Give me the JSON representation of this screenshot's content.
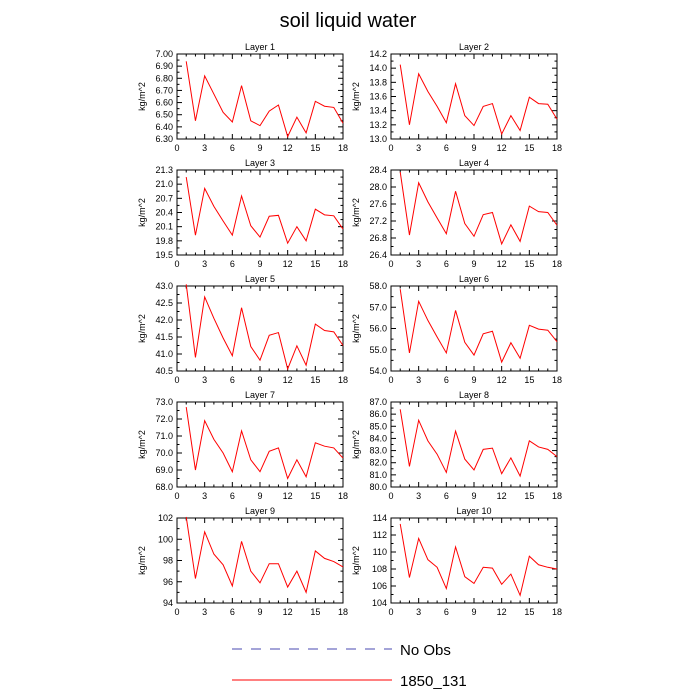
{
  "figure": {
    "title": "soil liquid water"
  },
  "legend": {
    "items": [
      {
        "label": "No Obs",
        "color": "#4a4ab0",
        "dash": "dashed"
      },
      {
        "label": "1850_131",
        "color": "#ff0000",
        "dash": "solid"
      }
    ]
  },
  "chart_data": [
    {
      "type": "line",
      "title": "Layer 1",
      "ylabel": "kg/m^2",
      "x": [
        1,
        2,
        3,
        4,
        5,
        6,
        7,
        8,
        9,
        10,
        11,
        12,
        13,
        14,
        15,
        16,
        17,
        18
      ],
      "xlim": [
        0,
        18
      ],
      "xticks": [
        0,
        3,
        6,
        9,
        12,
        15,
        18
      ],
      "ylim": [
        6.3,
        7.0
      ],
      "yticks": [
        "6.30",
        "6.40",
        "6.50",
        "6.60",
        "6.70",
        "6.80",
        "6.90",
        "7.00"
      ],
      "series": [
        {
          "name": "1850_131",
          "values": [
            6.94,
            6.45,
            6.82,
            6.67,
            6.52,
            6.44,
            6.74,
            6.45,
            6.41,
            6.53,
            6.58,
            6.32,
            6.48,
            6.35,
            6.61,
            6.57,
            6.56,
            6.43
          ]
        }
      ]
    },
    {
      "type": "line",
      "title": "Layer 2",
      "ylabel": "kg/m^2",
      "x": [
        1,
        2,
        3,
        4,
        5,
        6,
        7,
        8,
        9,
        10,
        11,
        12,
        13,
        14,
        15,
        16,
        17,
        18
      ],
      "xlim": [
        0,
        18
      ],
      "xticks": [
        0,
        3,
        6,
        9,
        12,
        15,
        18
      ],
      "ylim": [
        13.0,
        14.2
      ],
      "yticks": [
        "13.0",
        "13.2",
        "13.4",
        "13.6",
        "13.8",
        "14.0",
        "14.2"
      ],
      "series": [
        {
          "name": "1850_131",
          "values": [
            14.05,
            13.2,
            13.92,
            13.67,
            13.46,
            13.23,
            13.78,
            13.33,
            13.19,
            13.46,
            13.5,
            13.07,
            13.33,
            13.12,
            13.59,
            13.5,
            13.49,
            13.28
          ]
        }
      ]
    },
    {
      "type": "line",
      "title": "Layer 3",
      "ylabel": "kg/m^2",
      "x": [
        1,
        2,
        3,
        4,
        5,
        6,
        7,
        8,
        9,
        10,
        11,
        12,
        13,
        14,
        15,
        16,
        17,
        18
      ],
      "xlim": [
        0,
        18
      ],
      "xticks": [
        0,
        3,
        6,
        9,
        12,
        15,
        18
      ],
      "ylim": [
        19.5,
        21.3
      ],
      "yticks": [
        "19.5",
        "19.8",
        "20.1",
        "20.4",
        "20.7",
        "21.0",
        "21.3"
      ],
      "series": [
        {
          "name": "1850_131",
          "values": [
            21.15,
            19.92,
            20.91,
            20.53,
            20.22,
            19.92,
            20.75,
            20.12,
            19.88,
            20.32,
            20.34,
            19.75,
            20.1,
            19.8,
            20.47,
            20.35,
            20.33,
            20.05
          ]
        }
      ]
    },
    {
      "type": "line",
      "title": "Layer 4",
      "ylabel": "kg/m^2",
      "x": [
        1,
        2,
        3,
        4,
        5,
        6,
        7,
        8,
        9,
        10,
        11,
        12,
        13,
        14,
        15,
        16,
        17,
        18
      ],
      "xlim": [
        0,
        18
      ],
      "xticks": [
        0,
        3,
        6,
        9,
        12,
        15,
        18
      ],
      "ylim": [
        26.4,
        28.4
      ],
      "yticks": [
        "26.4",
        "26.8",
        "27.2",
        "27.6",
        "28.0",
        "28.4"
      ],
      "series": [
        {
          "name": "1850_131",
          "values": [
            28.35,
            26.87,
            28.1,
            27.65,
            27.27,
            26.9,
            27.9,
            27.14,
            26.84,
            27.35,
            27.4,
            26.66,
            27.11,
            26.72,
            27.55,
            27.42,
            27.4,
            27.1
          ]
        }
      ]
    },
    {
      "type": "line",
      "title": "Layer 5",
      "ylabel": "kg/m^2",
      "x": [
        1,
        2,
        3,
        4,
        5,
        6,
        7,
        8,
        9,
        10,
        11,
        12,
        13,
        14,
        15,
        16,
        17,
        18
      ],
      "xlim": [
        0,
        18
      ],
      "xticks": [
        0,
        3,
        6,
        9,
        12,
        15,
        18
      ],
      "ylim": [
        40.5,
        43.0
      ],
      "yticks": [
        "40.5",
        "41.0",
        "41.5",
        "42.0",
        "42.5",
        "43.0"
      ],
      "series": [
        {
          "name": "1850_131",
          "values": [
            43.05,
            40.9,
            42.68,
            42.05,
            41.47,
            40.95,
            42.36,
            41.22,
            40.82,
            41.55,
            41.63,
            40.56,
            41.24,
            40.67,
            41.88,
            41.69,
            41.65,
            41.25
          ]
        }
      ]
    },
    {
      "type": "line",
      "title": "Layer 6",
      "ylabel": "kg/m^2",
      "x": [
        1,
        2,
        3,
        4,
        5,
        6,
        7,
        8,
        9,
        10,
        11,
        12,
        13,
        14,
        15,
        16,
        17,
        18
      ],
      "xlim": [
        0,
        18
      ],
      "xticks": [
        0,
        3,
        6,
        9,
        12,
        15,
        18
      ],
      "ylim": [
        54.0,
        58.0
      ],
      "yticks": [
        "54.0",
        "55.0",
        "56.0",
        "57.0",
        "58.0"
      ],
      "series": [
        {
          "name": "1850_131",
          "values": [
            57.85,
            54.85,
            57.28,
            56.38,
            55.6,
            54.85,
            56.85,
            55.35,
            54.75,
            55.75,
            55.87,
            54.42,
            55.33,
            54.6,
            56.15,
            55.97,
            55.92,
            55.38
          ]
        }
      ]
    },
    {
      "type": "line",
      "title": "Layer 7",
      "ylabel": "kg/m^2",
      "x": [
        1,
        2,
        3,
        4,
        5,
        6,
        7,
        8,
        9,
        10,
        11,
        12,
        13,
        14,
        15,
        16,
        17,
        18
      ],
      "xlim": [
        0,
        18
      ],
      "xticks": [
        0,
        3,
        6,
        9,
        12,
        15,
        18
      ],
      "ylim": [
        68.0,
        73.0
      ],
      "yticks": [
        "68.0",
        "69.0",
        "70.0",
        "71.0",
        "72.0",
        "73.0"
      ],
      "series": [
        {
          "name": "1850_131",
          "values": [
            72.7,
            69.0,
            71.9,
            70.8,
            70.0,
            68.9,
            71.3,
            69.6,
            68.9,
            70.1,
            70.3,
            68.5,
            69.6,
            68.6,
            70.6,
            70.4,
            70.3,
            69.7
          ]
        }
      ]
    },
    {
      "type": "line",
      "title": "Layer 8",
      "ylabel": "kg/m^2",
      "x": [
        1,
        2,
        3,
        4,
        5,
        6,
        7,
        8,
        9,
        10,
        11,
        12,
        13,
        14,
        15,
        16,
        17,
        18
      ],
      "xlim": [
        0,
        18
      ],
      "xticks": [
        0,
        3,
        6,
        9,
        12,
        15,
        18
      ],
      "ylim": [
        80.0,
        87.0
      ],
      "yticks": [
        "80.0",
        "81.0",
        "82.0",
        "83.0",
        "84.0",
        "85.0",
        "86.0",
        "87.0"
      ],
      "series": [
        {
          "name": "1850_131",
          "values": [
            86.4,
            81.7,
            85.5,
            83.8,
            82.7,
            81.2,
            84.6,
            82.3,
            81.4,
            83.1,
            83.2,
            81.1,
            82.4,
            80.9,
            83.8,
            83.3,
            83.1,
            82.5
          ]
        }
      ]
    },
    {
      "type": "line",
      "title": "Layer 9",
      "ylabel": "kg/m^2",
      "x": [
        1,
        2,
        3,
        4,
        5,
        6,
        7,
        8,
        9,
        10,
        11,
        12,
        13,
        14,
        15,
        16,
        17,
        18
      ],
      "xlim": [
        0,
        18
      ],
      "xticks": [
        0,
        3,
        6,
        9,
        12,
        15,
        18
      ],
      "ylim": [
        94,
        102
      ],
      "yticks": [
        "94",
        "96",
        "98",
        "100",
        "102"
      ],
      "series": [
        {
          "name": "1850_131",
          "values": [
            102.1,
            96.3,
            100.7,
            98.6,
            97.6,
            95.6,
            99.8,
            97.0,
            95.9,
            97.7,
            97.7,
            95.5,
            97.0,
            95.0,
            98.9,
            98.2,
            97.9,
            97.4
          ]
        }
      ]
    },
    {
      "type": "line",
      "title": "Layer 10",
      "ylabel": "kg/m^2",
      "x": [
        1,
        2,
        3,
        4,
        5,
        6,
        7,
        8,
        9,
        10,
        11,
        12,
        13,
        14,
        15,
        16,
        17,
        18
      ],
      "xlim": [
        0,
        18
      ],
      "xticks": [
        0,
        3,
        6,
        9,
        12,
        15,
        18
      ],
      "ylim": [
        104,
        114
      ],
      "yticks": [
        "104",
        "106",
        "108",
        "110",
        "112",
        "114"
      ],
      "series": [
        {
          "name": "1850_131",
          "values": [
            113.3,
            107.0,
            111.6,
            109.1,
            108.2,
            105.7,
            110.6,
            107.1,
            106.3,
            108.2,
            108.1,
            106.2,
            107.4,
            104.9,
            109.5,
            108.5,
            108.2,
            108.0
          ]
        }
      ]
    }
  ]
}
